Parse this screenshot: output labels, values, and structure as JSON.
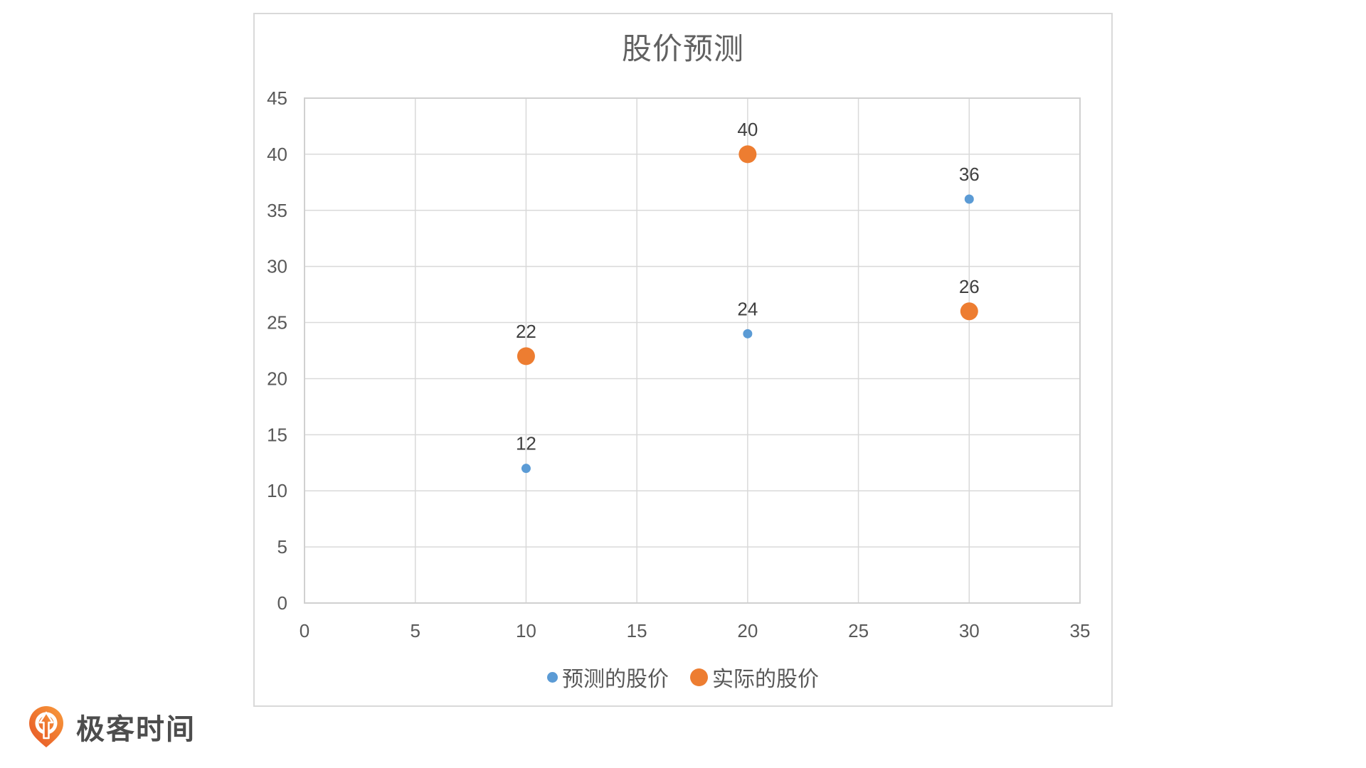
{
  "chart_data": {
    "type": "scatter",
    "title": "股价预测",
    "xlabel": "",
    "ylabel": "",
    "x_axis": {
      "min": 0,
      "max": 35,
      "ticks": [
        0,
        5,
        10,
        15,
        20,
        25,
        30,
        35
      ]
    },
    "y_axis": {
      "min": 0,
      "max": 45,
      "ticks": [
        0,
        5,
        10,
        15,
        20,
        25,
        30,
        35,
        40,
        45
      ]
    },
    "grid": true,
    "legend_position": "bottom",
    "series": [
      {
        "name": "预测的股价",
        "color": "#5b9bd5",
        "marker_radius": 6.5,
        "points": [
          {
            "x": 10,
            "y": 12,
            "label": "12"
          },
          {
            "x": 20,
            "y": 24,
            "label": "24"
          },
          {
            "x": 30,
            "y": 36,
            "label": "36"
          }
        ]
      },
      {
        "name": "实际的股价",
        "color": "#ed7d31",
        "marker_radius": 12.5,
        "points": [
          {
            "x": 10,
            "y": 22,
            "label": "22"
          },
          {
            "x": 20,
            "y": 40,
            "label": "40"
          },
          {
            "x": 30,
            "y": 26,
            "label": "26"
          }
        ]
      }
    ],
    "colors": {
      "gridline": "#d9d9d9",
      "plot_border": "#d0d0d0",
      "axis_label": "#595959",
      "data_label": "#3f3f3f",
      "title": "#616161"
    }
  },
  "branding": {
    "logo_text": "极客时间",
    "logo_orange_light": "#f89b3c",
    "logo_orange_dark": "#e65425"
  }
}
